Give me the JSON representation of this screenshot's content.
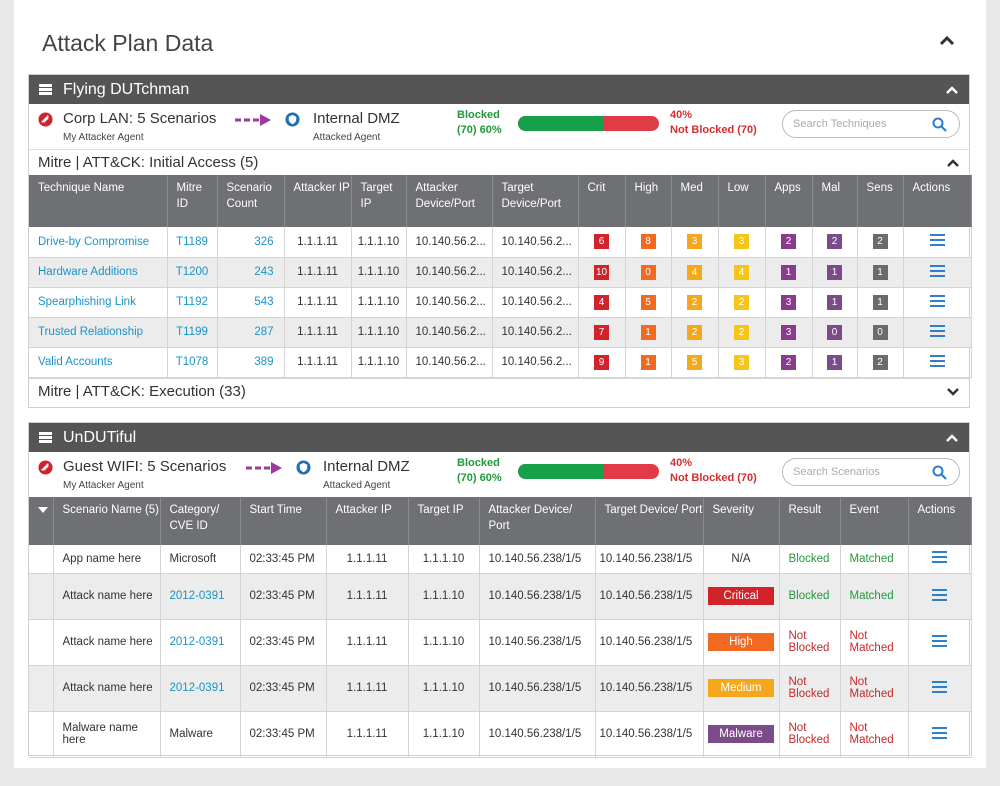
{
  "page": {
    "title": "Attack Plan Data"
  },
  "colors": {
    "crit": "#d2232a",
    "high": "#f26a21",
    "med": "#f5a81c",
    "low": "#f5c518",
    "apps": "#8a3c8c",
    "mal": "#7b4b8a",
    "sens": "#6b6b6b",
    "blocked": "#17a04a",
    "notblocked": "#e03b46"
  },
  "panel1": {
    "title": "Flying DUTchman",
    "source_name": "Corp LAN:",
    "source_scenarios": "5 Scenarios",
    "source_sub": "My Attacker Agent",
    "target_name": "Internal DMZ",
    "target_sub": "Attacked Agent",
    "blocked_label": "Blocked",
    "blocked_count": "(70)",
    "blocked_pct": "60%",
    "blocked_fraction": 0.6,
    "notblocked_pct": "40%",
    "notblocked_label": "Not Blocked (70)",
    "search_placeholder": "Search Techniques",
    "group1_title": "Mitre | ATT&CK: Initial Access (5)",
    "group2_title": "Mitre | ATT&CK: Execution (33)",
    "headers": [
      "Technique Name",
      "Mitre ID",
      "Scenario Count",
      "Attacker IP",
      "Target IP",
      "Attacker Device/Port",
      "Target Device/Port",
      "Crit",
      "High",
      "Med",
      "Low",
      "Apps",
      "Mal",
      "Sens",
      "Actions"
    ],
    "rows": [
      {
        "name": "Drive-by Compromise",
        "id": "T1189",
        "count": "326",
        "aip": "1.1.1.11",
        "tip": "1.1.1.10",
        "adev": "10.140.56.2...",
        "tdev": "10.140.56.2...",
        "crit": "6",
        "high": "8",
        "med": "3",
        "low": "3",
        "apps": "2",
        "mal": "2",
        "sens": "2"
      },
      {
        "name": "Hardware Additions",
        "id": "T1200",
        "count": "243",
        "aip": "1.1.1.11",
        "tip": "1.1.1.10",
        "adev": "10.140.56.2...",
        "tdev": "10.140.56.2...",
        "crit": "10",
        "high": "0",
        "med": "4",
        "low": "4",
        "apps": "1",
        "mal": "1",
        "sens": "1"
      },
      {
        "name": "Spearphishing Link",
        "id": "T1192",
        "count": "543",
        "aip": "1.1.1.11",
        "tip": "1.1.1.10",
        "adev": "10.140.56.2...",
        "tdev": "10.140.56.2...",
        "crit": "4",
        "high": "5",
        "med": "2",
        "low": "2",
        "apps": "3",
        "mal": "1",
        "sens": "1"
      },
      {
        "name": "Trusted Relationship",
        "id": "T1199",
        "count": "287",
        "aip": "1.1.1.11",
        "tip": "1.1.1.10",
        "adev": "10.140.56.2...",
        "tdev": "10.140.56.2...",
        "crit": "7",
        "high": "1",
        "med": "2",
        "low": "2",
        "apps": "3",
        "mal": "0",
        "sens": "0"
      },
      {
        "name": "Valid Accounts",
        "id": "T1078",
        "count": "389",
        "aip": "1.1.1.11",
        "tip": "1.1.1.10",
        "adev": "10.140.56.2...",
        "tdev": "10.140.56.2...",
        "crit": "9",
        "high": "1",
        "med": "5",
        "low": "3",
        "apps": "2",
        "mal": "1",
        "sens": "2"
      }
    ]
  },
  "panel2": {
    "title": "UnDUTiful",
    "source_name": "Guest WIFI:",
    "source_scenarios": "5 Scenarios",
    "source_sub": "My Attacker Agent",
    "target_name": "Internal DMZ",
    "target_sub": "Attacked Agent",
    "blocked_label": "Blocked",
    "blocked_count": "(70)",
    "blocked_pct": "60%",
    "blocked_fraction": 0.6,
    "notblocked_pct": "40%",
    "notblocked_label": "Not Blocked (70)",
    "search_placeholder": "Search Scenarios",
    "headers": [
      "Scenario Name (5)",
      "Category/ CVE ID",
      "Start Time",
      "Attacker IP",
      "Target IP",
      "Attacker Device/ Port",
      "Target Device/ Port",
      "Severity",
      "Result",
      "Event",
      "Actions"
    ],
    "rows": [
      {
        "name": "App name here",
        "cat": "Microsoft",
        "cat_link": false,
        "time": "02:33:45 PM",
        "aip": "1.1.1.11",
        "tip": "1.1.1.10",
        "adev": "10.140.56.238/1/5",
        "tdev": "10.140.56.238/1/5",
        "sev": "N/A",
        "sev_color": "",
        "result": "Blocked",
        "result_ok": true,
        "event": "Matched",
        "event_ok": true
      },
      {
        "name": "Attack name here",
        "cat": "2012-0391",
        "cat_link": true,
        "time": "02:33:45 PM",
        "aip": "1.1.1.11",
        "tip": "1.1.1.10",
        "adev": "10.140.56.238/1/5",
        "tdev": "10.140.56.238/1/5",
        "sev": "Critical",
        "sev_color": "#d2232a",
        "result": "Blocked",
        "result_ok": true,
        "event": "Matched",
        "event_ok": true
      },
      {
        "name": "Attack name here",
        "cat": "2012-0391",
        "cat_link": true,
        "time": "02:33:45 PM",
        "aip": "1.1.1.11",
        "tip": "1.1.1.10",
        "adev": "10.140.56.238/1/5",
        "tdev": "10.140.56.238/1/5",
        "sev": "High",
        "sev_color": "#f26a21",
        "result": "Not Blocked",
        "result_ok": false,
        "event": "Not Matched",
        "event_ok": false
      },
      {
        "name": "Attack name here",
        "cat": "2012-0391",
        "cat_link": true,
        "time": "02:33:45 PM",
        "aip": "1.1.1.11",
        "tip": "1.1.1.10",
        "adev": "10.140.56.238/1/5",
        "tdev": "10.140.56.238/1/5",
        "sev": "Medium",
        "sev_color": "#f5a81c",
        "result": "Not Blocked",
        "result_ok": false,
        "event": "Not Matched",
        "event_ok": false
      },
      {
        "name": "Malware name here",
        "cat": "Malware",
        "cat_link": false,
        "time": "02:33:45 PM",
        "aip": "1.1.1.11",
        "tip": "1.1.1.10",
        "adev": "10.140.56.238/1/5",
        "tdev": "10.140.56.238/1/5",
        "sev": "Malware",
        "sev_color": "#7b4b8a",
        "result": "Not Blocked",
        "result_ok": false,
        "event": "Not Matched",
        "event_ok": false
      }
    ]
  }
}
